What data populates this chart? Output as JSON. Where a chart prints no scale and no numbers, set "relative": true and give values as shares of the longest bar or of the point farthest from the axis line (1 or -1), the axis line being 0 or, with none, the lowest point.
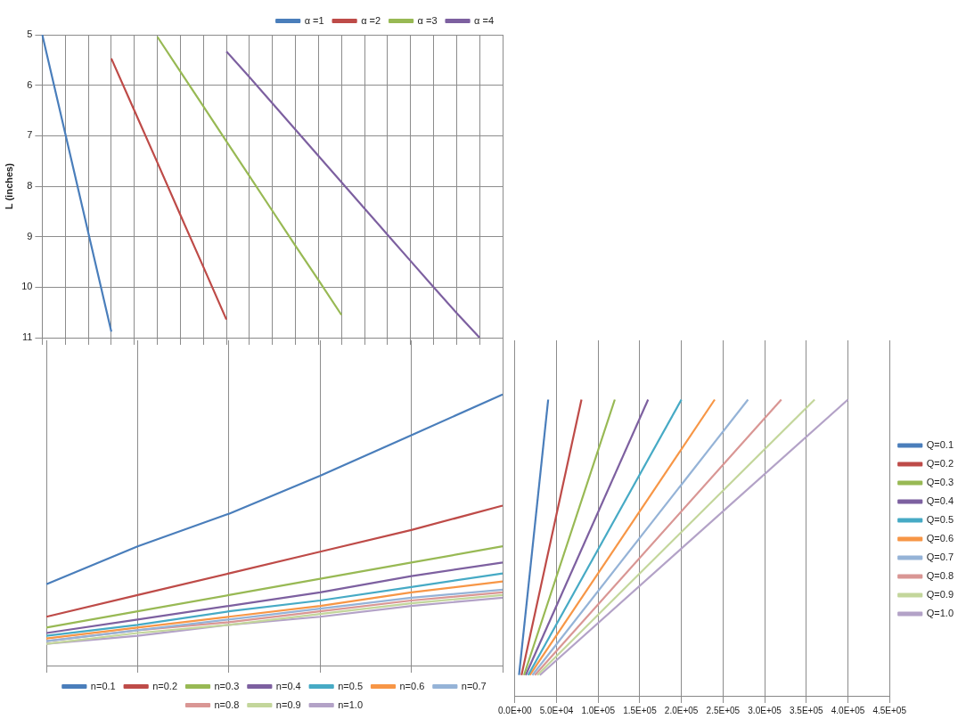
{
  "chart_data": [
    {
      "type": "line",
      "ylabel": "L (inches)",
      "categories": [
        null,
        null,
        null,
        null,
        null,
        null,
        null,
        null,
        null,
        null,
        null,
        null,
        null,
        null,
        null,
        null,
        null,
        null,
        null,
        null,
        null
      ],
      "series": [
        {
          "name": "α =1",
          "color": "#4a7ebb",
          "values": [
            5,
            6.96,
            8.92,
            10.88,
            null,
            null,
            null,
            null,
            null,
            null,
            null,
            null,
            null,
            null,
            null,
            null,
            null,
            null,
            null,
            null,
            null
          ]
        },
        {
          "name": "α =2",
          "color": "#be4b48",
          "values": [
            null,
            null,
            null,
            5.47,
            6.5,
            7.53,
            8.57,
            9.6,
            10.64,
            null,
            null,
            null,
            null,
            null,
            null,
            null,
            null,
            null,
            null,
            null,
            null
          ]
        },
        {
          "name": "α =3",
          "color": "#98b954",
          "values": [
            null,
            null,
            null,
            null,
            null,
            5.04,
            5.73,
            6.42,
            7.11,
            7.8,
            8.49,
            9.18,
            9.86,
            10.55,
            null,
            null,
            null,
            null,
            null,
            null,
            null
          ]
        },
        {
          "name": "α =4",
          "color": "#7d60a0",
          "values": [
            null,
            null,
            null,
            null,
            null,
            null,
            null,
            null,
            5.33,
            5.84,
            6.36,
            6.88,
            7.4,
            7.92,
            8.44,
            8.96,
            9.48,
            10.0,
            10.51,
            11.0,
            null
          ]
        }
      ],
      "ylim": [
        11,
        5
      ],
      "yticks": [
        5,
        6,
        7,
        8,
        9,
        10,
        11
      ],
      "grid": true,
      "legend": "top right",
      "tick_labels": "y",
      "marker": "none"
    },
    {
      "type": "line",
      "relative": true,
      "categories": [
        null,
        null,
        null,
        null,
        null,
        null
      ],
      "series": [
        {
          "name": "n=0.1",
          "color": "#4a7ebb",
          "values": [
            0.3,
            0.44,
            0.56,
            0.7,
            0.85,
            1.0
          ]
        },
        {
          "name": "n=0.2",
          "color": "#be4b48",
          "values": [
            0.18,
            0.26,
            0.34,
            0.42,
            0.5,
            0.59
          ]
        },
        {
          "name": "n=0.3",
          "color": "#98b954",
          "values": [
            0.14,
            0.2,
            0.26,
            0.32,
            0.38,
            0.44
          ]
        },
        {
          "name": "n=0.4",
          "color": "#7d60a0",
          "values": [
            0.12,
            0.17,
            0.22,
            0.27,
            0.33,
            0.38
          ]
        },
        {
          "name": "n=0.5",
          "color": "#46aac5",
          "values": [
            0.11,
            0.15,
            0.2,
            0.24,
            0.29,
            0.34
          ]
        },
        {
          "name": "n=0.6",
          "color": "#f79646",
          "values": [
            0.1,
            0.14,
            0.18,
            0.22,
            0.27,
            0.31
          ]
        },
        {
          "name": "n=0.7",
          "color": "#95b3d7",
          "values": [
            0.09,
            0.13,
            0.17,
            0.21,
            0.25,
            0.28
          ]
        },
        {
          "name": "n=0.8",
          "color": "#d99694",
          "values": [
            0.09,
            0.13,
            0.16,
            0.2,
            0.24,
            0.27
          ]
        },
        {
          "name": "n=0.9",
          "color": "#c3d69b",
          "values": [
            0.08,
            0.12,
            0.15,
            0.19,
            0.23,
            0.26
          ]
        },
        {
          "name": "n=1.0",
          "color": "#b3a2c7",
          "values": [
            0.08,
            0.11,
            0.15,
            0.18,
            0.22,
            0.25
          ]
        }
      ],
      "grid": "x",
      "legend": "bottom",
      "tick_labels": false,
      "marker": "none"
    },
    {
      "type": "line",
      "relative": true,
      "series": [
        {
          "name": "Q=0.1",
          "color": "#4a7ebb",
          "x": [
            5000,
            40000
          ],
          "values": [
            0.07,
            1.0
          ]
        },
        {
          "name": "Q=0.2",
          "color": "#be4b48",
          "x": [
            8000,
            80000
          ],
          "values": [
            0.07,
            1.0
          ]
        },
        {
          "name": "Q=0.3",
          "color": "#98b954",
          "x": [
            11000,
            120000
          ],
          "values": [
            0.07,
            1.0
          ]
        },
        {
          "name": "Q=0.4",
          "color": "#7d60a0",
          "x": [
            13000,
            160000
          ],
          "values": [
            0.07,
            1.0
          ]
        },
        {
          "name": "Q=0.5",
          "color": "#46aac5",
          "x": [
            16000,
            200000
          ],
          "values": [
            0.07,
            1.0
          ]
        },
        {
          "name": "Q=0.6",
          "color": "#f79646",
          "x": [
            18000,
            240000
          ],
          "values": [
            0.07,
            1.0
          ]
        },
        {
          "name": "Q=0.7",
          "color": "#95b3d7",
          "x": [
            21000,
            280000
          ],
          "values": [
            0.07,
            1.0
          ]
        },
        {
          "name": "Q=0.8",
          "color": "#d99694",
          "x": [
            24000,
            320000
          ],
          "values": [
            0.07,
            1.0
          ]
        },
        {
          "name": "Q=0.9",
          "color": "#c3d69b",
          "x": [
            27000,
            360000
          ],
          "values": [
            0.07,
            1.0
          ]
        },
        {
          "name": "Q=1.0",
          "color": "#b3a2c7",
          "x": [
            30000,
            400000
          ],
          "values": [
            0.07,
            1.0
          ]
        }
      ],
      "xlim": [
        0,
        450000
      ],
      "xticks": [
        {
          "value": 0,
          "label": "0.0E+00"
        },
        {
          "value": 50000,
          "label": "5.0E+04"
        },
        {
          "value": 100000,
          "label": "1.0E+05"
        },
        {
          "value": 150000,
          "label": "1.5E+05"
        },
        {
          "value": 200000,
          "label": "2.0E+05"
        },
        {
          "value": 250000,
          "label": "2.5E+05"
        },
        {
          "value": 300000,
          "label": "3.0E+05"
        },
        {
          "value": 350000,
          "label": "3.5E+05"
        },
        {
          "value": 400000,
          "label": "4.0E+05"
        },
        {
          "value": 450000,
          "label": "4.5E+05"
        }
      ],
      "grid": "x",
      "legend": "right",
      "tick_labels": "x",
      "marker": "none"
    }
  ]
}
